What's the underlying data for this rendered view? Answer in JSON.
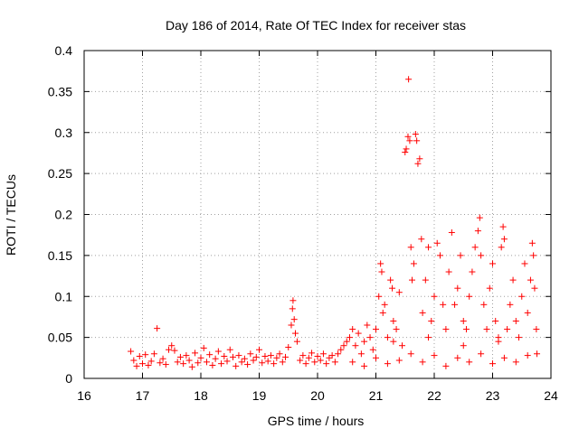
{
  "chart_data": {
    "type": "scatter",
    "title": "Day 186 of 2014, Rate Of TEC Index for receiver stas",
    "xlabel": "GPS time / hours",
    "ylabel": "ROTI / TECUs",
    "xlim": [
      16,
      24
    ],
    "ylim": [
      0,
      0.4
    ],
    "grid": true,
    "marker": "+",
    "color": "#ff0000",
    "x_ticks": [
      {
        "value": 16,
        "label": "16"
      },
      {
        "value": 17,
        "label": "17"
      },
      {
        "value": 18,
        "label": "18"
      },
      {
        "value": 19,
        "label": "19"
      },
      {
        "value": 20,
        "label": "20"
      },
      {
        "value": 21,
        "label": "21"
      },
      {
        "value": 22,
        "label": "22"
      },
      {
        "value": 23,
        "label": "23"
      },
      {
        "value": 24,
        "label": "24"
      }
    ],
    "y_ticks": [
      {
        "value": 0,
        "label": "0"
      },
      {
        "value": 0.05,
        "label": "0.05"
      },
      {
        "value": 0.1,
        "label": "0.1"
      },
      {
        "value": 0.15,
        "label": "0.15"
      },
      {
        "value": 0.2,
        "label": "0.2"
      },
      {
        "value": 0.25,
        "label": "0.25"
      },
      {
        "value": 0.3,
        "label": "0.3"
      },
      {
        "value": 0.35,
        "label": "0.35"
      },
      {
        "value": 0.4,
        "label": "0.4"
      }
    ],
    "points": [
      [
        16.8,
        0.033
      ],
      [
        16.85,
        0.022
      ],
      [
        16.9,
        0.015
      ],
      [
        16.95,
        0.027
      ],
      [
        17.0,
        0.018
      ],
      [
        17.05,
        0.029
      ],
      [
        17.1,
        0.016
      ],
      [
        17.15,
        0.021
      ],
      [
        17.2,
        0.03
      ],
      [
        17.25,
        0.061
      ],
      [
        17.3,
        0.019
      ],
      [
        17.35,
        0.024
      ],
      [
        17.4,
        0.017
      ],
      [
        17.45,
        0.035
      ],
      [
        17.5,
        0.04
      ],
      [
        17.55,
        0.034
      ],
      [
        17.6,
        0.02
      ],
      [
        17.65,
        0.026
      ],
      [
        17.7,
        0.018
      ],
      [
        17.75,
        0.028
      ],
      [
        17.8,
        0.022
      ],
      [
        17.85,
        0.014
      ],
      [
        17.9,
        0.031
      ],
      [
        17.95,
        0.019
      ],
      [
        18.0,
        0.025
      ],
      [
        18.05,
        0.037
      ],
      [
        18.1,
        0.02
      ],
      [
        18.15,
        0.029
      ],
      [
        18.2,
        0.016
      ],
      [
        18.25,
        0.024
      ],
      [
        18.3,
        0.033
      ],
      [
        18.35,
        0.018
      ],
      [
        18.4,
        0.027
      ],
      [
        18.45,
        0.021
      ],
      [
        18.5,
        0.035
      ],
      [
        18.55,
        0.026
      ],
      [
        18.6,
        0.015
      ],
      [
        18.65,
        0.028
      ],
      [
        18.7,
        0.02
      ],
      [
        18.75,
        0.024
      ],
      [
        18.8,
        0.017
      ],
      [
        18.85,
        0.03
      ],
      [
        18.9,
        0.022
      ],
      [
        18.95,
        0.026
      ],
      [
        19.0,
        0.035
      ],
      [
        19.05,
        0.019
      ],
      [
        19.1,
        0.027
      ],
      [
        19.15,
        0.021
      ],
      [
        19.2,
        0.028
      ],
      [
        19.25,
        0.018
      ],
      [
        19.3,
        0.025
      ],
      [
        19.35,
        0.03
      ],
      [
        19.4,
        0.02
      ],
      [
        19.45,
        0.026
      ],
      [
        19.5,
        0.038
      ],
      [
        19.55,
        0.065
      ],
      [
        19.57,
        0.085
      ],
      [
        19.58,
        0.095
      ],
      [
        19.6,
        0.072
      ],
      [
        19.62,
        0.055
      ],
      [
        19.65,
        0.045
      ],
      [
        19.7,
        0.022
      ],
      [
        19.75,
        0.028
      ],
      [
        19.8,
        0.018
      ],
      [
        19.85,
        0.025
      ],
      [
        19.9,
        0.031
      ],
      [
        19.95,
        0.02
      ],
      [
        20.0,
        0.027
      ],
      [
        20.05,
        0.022
      ],
      [
        20.1,
        0.03
      ],
      [
        20.15,
        0.018
      ],
      [
        20.2,
        0.025
      ],
      [
        20.25,
        0.028
      ],
      [
        20.3,
        0.02
      ],
      [
        20.35,
        0.03
      ],
      [
        20.4,
        0.035
      ],
      [
        20.45,
        0.04
      ],
      [
        20.5,
        0.045
      ],
      [
        20.55,
        0.05
      ],
      [
        20.6,
        0.06
      ],
      [
        20.65,
        0.04
      ],
      [
        20.7,
        0.055
      ],
      [
        20.75,
        0.03
      ],
      [
        20.8,
        0.045
      ],
      [
        20.85,
        0.065
      ],
      [
        20.9,
        0.05
      ],
      [
        20.95,
        0.035
      ],
      [
        21.0,
        0.06
      ],
      [
        21.05,
        0.1
      ],
      [
        21.08,
        0.14
      ],
      [
        21.1,
        0.13
      ],
      [
        21.12,
        0.08
      ],
      [
        21.15,
        0.09
      ],
      [
        21.2,
        0.05
      ],
      [
        21.25,
        0.12
      ],
      [
        21.28,
        0.11
      ],
      [
        21.3,
        0.07
      ],
      [
        21.35,
        0.06
      ],
      [
        21.4,
        0.105
      ],
      [
        21.45,
        0.04
      ],
      [
        21.5,
        0.276
      ],
      [
        21.52,
        0.28
      ],
      [
        21.55,
        0.295
      ],
      [
        21.56,
        0.365
      ],
      [
        21.58,
        0.29
      ],
      [
        21.6,
        0.16
      ],
      [
        21.62,
        0.12
      ],
      [
        21.65,
        0.14
      ],
      [
        21.68,
        0.298
      ],
      [
        21.7,
        0.29
      ],
      [
        21.72,
        0.262
      ],
      [
        21.75,
        0.268
      ],
      [
        21.78,
        0.17
      ],
      [
        21.8,
        0.08
      ],
      [
        21.85,
        0.12
      ],
      [
        21.9,
        0.16
      ],
      [
        21.95,
        0.07
      ],
      [
        22.0,
        0.1
      ],
      [
        22.05,
        0.165
      ],
      [
        22.1,
        0.15
      ],
      [
        22.15,
        0.09
      ],
      [
        22.2,
        0.06
      ],
      [
        22.25,
        0.13
      ],
      [
        22.3,
        0.178
      ],
      [
        22.35,
        0.09
      ],
      [
        22.4,
        0.11
      ],
      [
        22.45,
        0.15
      ],
      [
        22.5,
        0.07
      ],
      [
        22.55,
        0.06
      ],
      [
        22.6,
        0.1
      ],
      [
        22.65,
        0.13
      ],
      [
        22.7,
        0.16
      ],
      [
        22.75,
        0.18
      ],
      [
        22.78,
        0.196
      ],
      [
        22.8,
        0.15
      ],
      [
        22.85,
        0.09
      ],
      [
        22.9,
        0.06
      ],
      [
        22.95,
        0.11
      ],
      [
        23.0,
        0.14
      ],
      [
        23.05,
        0.07
      ],
      [
        23.1,
        0.05
      ],
      [
        23.15,
        0.16
      ],
      [
        23.18,
        0.185
      ],
      [
        23.2,
        0.17
      ],
      [
        23.25,
        0.06
      ],
      [
        23.3,
        0.09
      ],
      [
        23.35,
        0.12
      ],
      [
        23.4,
        0.07
      ],
      [
        23.45,
        0.05
      ],
      [
        23.5,
        0.1
      ],
      [
        23.55,
        0.14
      ],
      [
        23.6,
        0.08
      ],
      [
        23.65,
        0.12
      ],
      [
        23.68,
        0.165
      ],
      [
        23.7,
        0.15
      ],
      [
        23.72,
        0.11
      ],
      [
        23.75,
        0.06
      ],
      [
        23.76,
        0.03
      ],
      [
        20.6,
        0.02
      ],
      [
        20.8,
        0.015
      ],
      [
        21.0,
        0.025
      ],
      [
        21.2,
        0.018
      ],
      [
        21.4,
        0.022
      ],
      [
        21.6,
        0.03
      ],
      [
        21.8,
        0.02
      ],
      [
        22.0,
        0.028
      ],
      [
        22.2,
        0.015
      ],
      [
        22.4,
        0.025
      ],
      [
        22.6,
        0.02
      ],
      [
        22.8,
        0.03
      ],
      [
        23.0,
        0.018
      ],
      [
        23.2,
        0.025
      ],
      [
        23.4,
        0.02
      ],
      [
        23.6,
        0.028
      ],
      [
        21.3,
        0.045
      ],
      [
        21.9,
        0.05
      ],
      [
        22.5,
        0.04
      ],
      [
        23.1,
        0.045
      ]
    ]
  }
}
